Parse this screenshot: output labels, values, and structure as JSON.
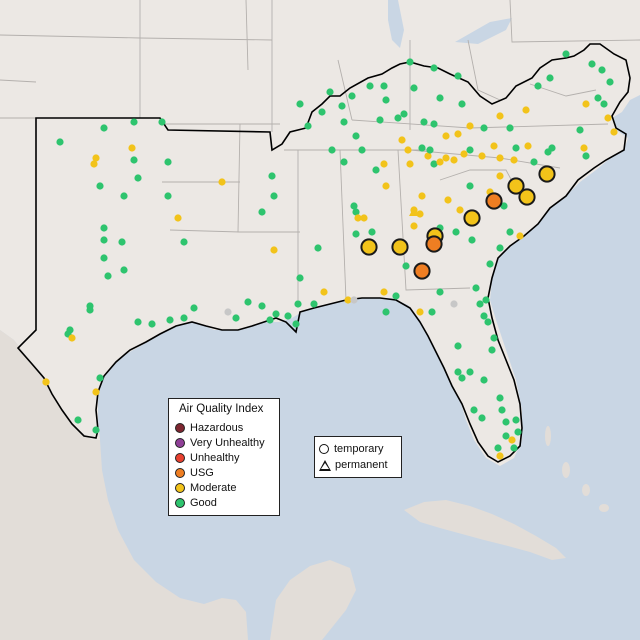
{
  "legend": {
    "title": "Air Quality Index",
    "categories": [
      {
        "label": "Hazardous",
        "color": "#7e2630"
      },
      {
        "label": "Very Unhealthy",
        "color": "#8f3f97"
      },
      {
        "label": "Unhealthy",
        "color": "#e8402f"
      },
      {
        "label": "USG",
        "color": "#ef7e22"
      },
      {
        "label": "Moderate",
        "color": "#f2c31a"
      },
      {
        "label": "Good",
        "color": "#2ec46e"
      }
    ],
    "unhealthy_color": "#c7c7c7"
  },
  "monitor_types": [
    {
      "label": "temporary",
      "symbol": "circle"
    },
    {
      "label": "permanent",
      "symbol": "triangle"
    }
  ],
  "colors": {
    "water": "#c9d6e4",
    "land": "#ece8e4",
    "foreign_land": "#e2ddd8",
    "state_border": "#b4b0ad",
    "region_outline": "#000000"
  }
}
